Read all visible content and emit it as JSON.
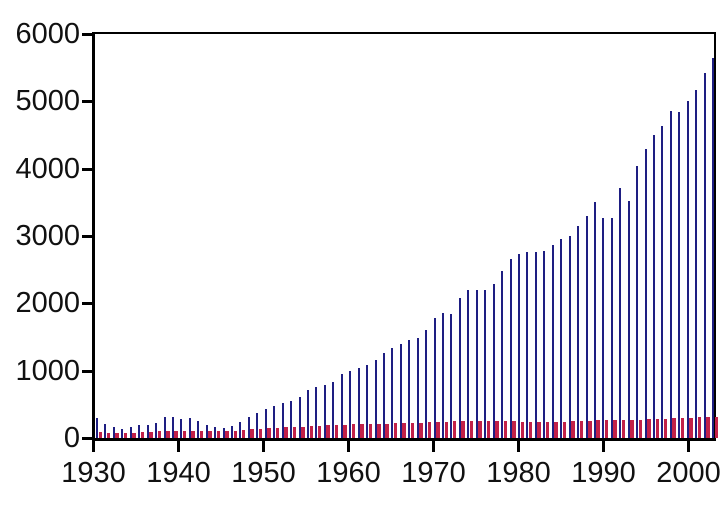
{
  "chart_data": {
    "type": "bar",
    "title": "",
    "xlabel": "",
    "ylabel": "",
    "x_start": 1930,
    "x_end": 2003,
    "x": [
      1930,
      1931,
      1932,
      1933,
      1934,
      1935,
      1936,
      1937,
      1938,
      1939,
      1940,
      1941,
      1942,
      1943,
      1944,
      1945,
      1946,
      1947,
      1948,
      1949,
      1950,
      1951,
      1952,
      1953,
      1954,
      1955,
      1956,
      1957,
      1958,
      1959,
      1960,
      1961,
      1962,
      1963,
      1964,
      1965,
      1966,
      1967,
      1968,
      1969,
      1970,
      1971,
      1972,
      1973,
      1974,
      1975,
      1976,
      1977,
      1978,
      1979,
      1980,
      1981,
      1982,
      1983,
      1984,
      1985,
      1986,
      1987,
      1988,
      1989,
      1990,
      1991,
      1992,
      1993,
      1994,
      1995,
      1996,
      1997,
      1998,
      1999,
      2000,
      2001,
      2002,
      2003
    ],
    "series": [
      {
        "name": "blue_bars",
        "color": "#1e1e82",
        "values": [
          290,
          205,
          160,
          140,
          160,
          190,
          200,
          225,
          305,
          310,
          280,
          295,
          250,
          200,
          170,
          150,
          180,
          245,
          310,
          370,
          435,
          480,
          525,
          550,
          605,
          720,
          755,
          790,
          825,
          950,
          1000,
          1035,
          1090,
          1165,
          1255,
          1330,
          1395,
          1460,
          1485,
          1600,
          1785,
          1855,
          1835,
          2080,
          2200,
          2205,
          2195,
          2290,
          2480,
          2655,
          2740,
          2765,
          2760,
          2770,
          2865,
          2950,
          3000,
          3155,
          3300,
          3505,
          3260,
          3265,
          3710,
          3515,
          4045,
          4290,
          4495,
          4635,
          4850,
          4840,
          5010,
          5175,
          5420,
          5640
        ]
      },
      {
        "name": "red_bars",
        "color": "#c22148",
        "values": [
          85,
          80,
          75,
          70,
          80,
          90,
          95,
          100,
          100,
          105,
          105,
          110,
          110,
          105,
          100,
          100,
          110,
          120,
          130,
          140,
          150,
          155,
          160,
          165,
          170,
          180,
          185,
          190,
          195,
          200,
          205,
          205,
          210,
          210,
          215,
          220,
          225,
          225,
          230,
          235,
          240,
          245,
          250,
          255,
          255,
          250,
          250,
          255,
          255,
          250,
          245,
          240,
          235,
          235,
          240,
          245,
          250,
          255,
          255,
          260,
          260,
          265,
          265,
          265,
          270,
          275,
          280,
          285,
          290,
          295,
          300,
          305,
          310,
          315
        ]
      }
    ],
    "ylim": [
      0,
      6000
    ],
    "yticks": [
      0,
      1000,
      2000,
      3000,
      4000,
      5000,
      6000
    ],
    "xticks": [
      1930,
      1940,
      1950,
      1960,
      1970,
      1980,
      1990,
      2000
    ],
    "grid": false,
    "legend": "none",
    "axis_color": "#000000",
    "background_color": "#ffffff",
    "tick_label_color": "#111111"
  }
}
